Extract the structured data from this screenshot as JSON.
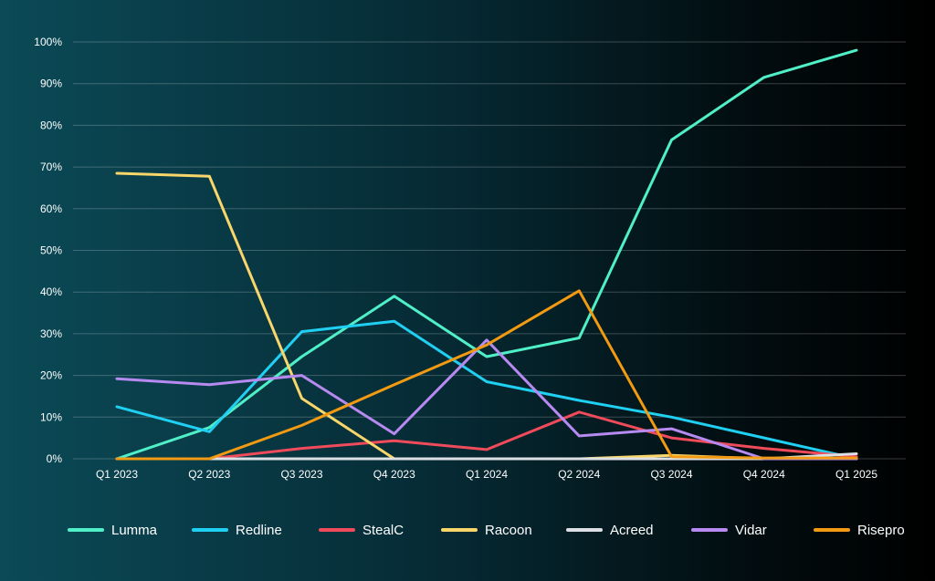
{
  "chart_data": {
    "type": "line",
    "title": "",
    "xlabel": "",
    "ylabel": "",
    "categories": [
      "Q1 2023",
      "Q2 2023",
      "Q3 2023",
      "Q4 2023",
      "Q1 2024",
      "Q2 2024",
      "Q3 2024",
      "Q4 2024",
      "Q1 2025"
    ],
    "y_ticks": [
      "0%",
      "10%",
      "20%",
      "30%",
      "40%",
      "50%",
      "60%",
      "70%",
      "80%",
      "90%",
      "100%"
    ],
    "ylim": [
      0,
      100
    ],
    "grid": true,
    "legend_position": "bottom",
    "series": [
      {
        "name": "Lumma",
        "color": "#4ff0c8",
        "values": [
          0,
          7.5,
          24.5,
          39,
          24.5,
          29,
          76.5,
          91.5,
          98
        ]
      },
      {
        "name": "Redline",
        "color": "#1fd0f2",
        "values": [
          12.5,
          6.5,
          30.5,
          33,
          18.5,
          14,
          10,
          5,
          0
        ]
      },
      {
        "name": "StealC",
        "color": "#ef4b5a",
        "values": [
          0,
          0,
          2.5,
          4.3,
          2.2,
          11.2,
          5,
          2.5,
          0.5
        ]
      },
      {
        "name": "Racoon",
        "color": "#f8d66a",
        "values": [
          68.5,
          67.8,
          14.5,
          0,
          0,
          0,
          0.8,
          0,
          0
        ]
      },
      {
        "name": "Acreed",
        "color": "#dcdfe3",
        "values": [
          0,
          0,
          0,
          0,
          0,
          0,
          0,
          0,
          1.2
        ]
      },
      {
        "name": "Vidar",
        "color": "#b68af0",
        "values": [
          19.2,
          17.8,
          20,
          6,
          28.5,
          5.5,
          7.2,
          0,
          0
        ]
      },
      {
        "name": "Risepro",
        "color": "#f29a12",
        "values": [
          0,
          0,
          8,
          17.8,
          27.3,
          40.3,
          0.5,
          0.2,
          0.2
        ]
      }
    ]
  }
}
